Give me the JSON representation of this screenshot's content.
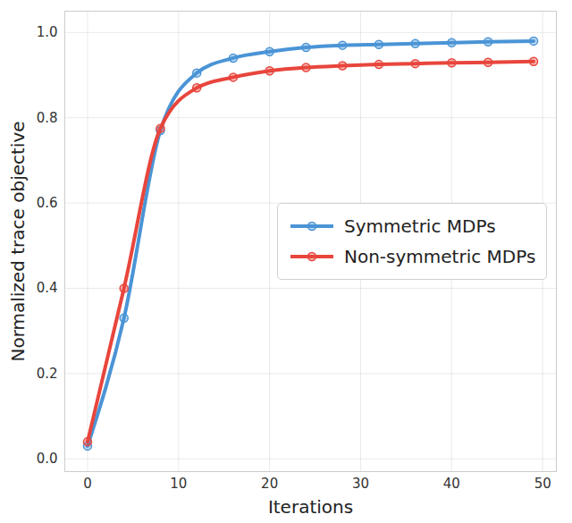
{
  "chart_data": {
    "type": "line",
    "x_label": "Iterations",
    "y_label": "Normalized trace objective",
    "x": [
      0,
      4,
      8,
      12,
      16,
      20,
      24,
      28,
      32,
      36,
      40,
      44,
      49
    ],
    "series": [
      {
        "name": "Symmetric MDPs",
        "color": "#4a94d6",
        "marker": "circle",
        "line_style": "solid",
        "values": [
          0.03,
          0.33,
          0.77,
          0.905,
          0.94,
          0.955,
          0.965,
          0.97,
          0.972,
          0.974,
          0.976,
          0.978,
          0.98
        ]
      },
      {
        "name": "Non-symmetric MDPs",
        "color": "#e8453c",
        "marker": "circle",
        "line_style": "solid",
        "values": [
          0.04,
          0.4,
          0.775,
          0.87,
          0.895,
          0.91,
          0.918,
          0.922,
          0.925,
          0.927,
          0.929,
          0.93,
          0.932
        ]
      }
    ],
    "xlim": [
      -2.5,
      51.5
    ],
    "xticks": [
      0,
      10,
      20,
      30,
      40,
      50
    ],
    "ylim": [
      -0.03,
      1.05
    ],
    "yticks": [
      {
        "value": 0,
        "label": "0.0"
      },
      0.2,
      0.4,
      0.6,
      0.8,
      {
        "value": 1,
        "label": "1.0"
      }
    ],
    "grid": true,
    "legend": "right"
  }
}
